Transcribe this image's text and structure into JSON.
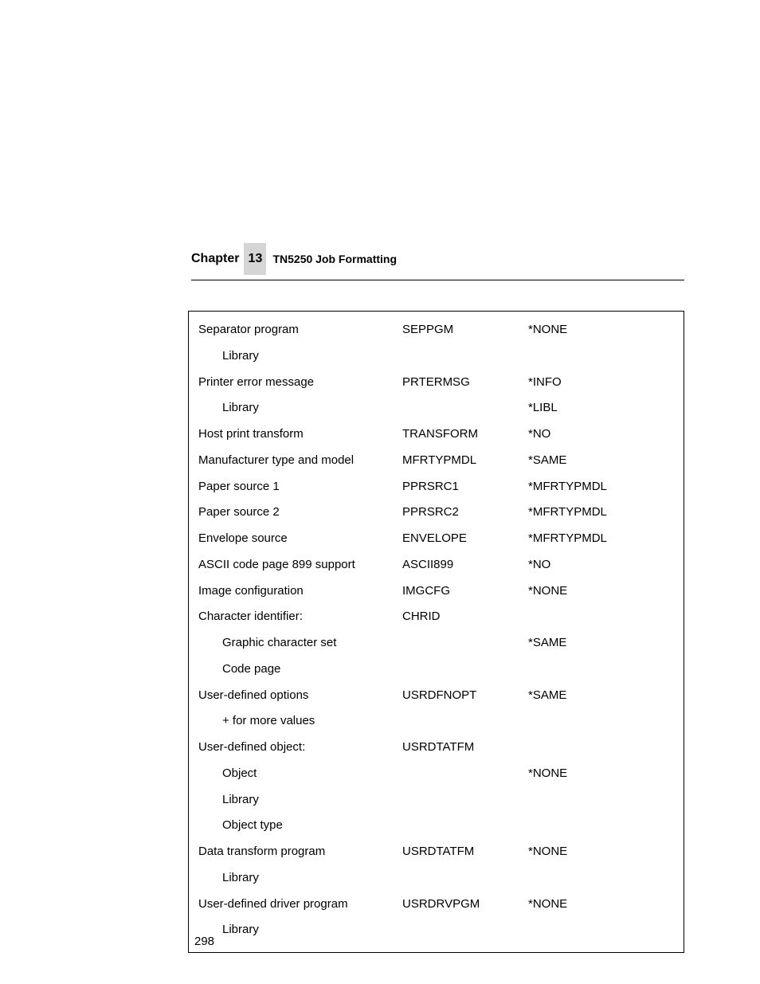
{
  "header": {
    "chapter_label": "Chapter",
    "chapter_number": "13",
    "section_title": "TN5250 Job Formatting"
  },
  "rows": [
    {
      "desc": "Separator program",
      "kw": "SEPPGM",
      "val": "*NONE",
      "indent": 0
    },
    {
      "desc": "Library",
      "kw": "",
      "val": "",
      "indent": 1
    },
    {
      "desc": "Printer error message",
      "kw": "PRTERMSG",
      "val": "*INFO",
      "indent": 0
    },
    {
      "desc": "Library",
      "kw": "",
      "val": "*LIBL",
      "indent": 1
    },
    {
      "desc": "Host print transform",
      "kw": "TRANSFORM",
      "val": "*NO",
      "indent": 0
    },
    {
      "desc": "Manufacturer type and model",
      "kw": "MFRTYPMDL",
      "val": "*SAME",
      "indent": 0
    },
    {
      "desc": "Paper source 1",
      "kw": "PPRSRC1",
      "val": "*MFRTYPMDL",
      "indent": 0
    },
    {
      "desc": "Paper source 2",
      "kw": "PPRSRC2",
      "val": "*MFRTYPMDL",
      "indent": 0
    },
    {
      "desc": "Envelope source",
      "kw": "ENVELOPE",
      "val": "*MFRTYPMDL",
      "indent": 0
    },
    {
      "desc": "ASCII code page 899 support",
      "kw": "ASCII899",
      "val": "*NO",
      "indent": 0
    },
    {
      "desc": "Image configuration",
      "kw": "IMGCFG",
      "val": "*NONE",
      "indent": 0
    },
    {
      "desc": "Character identifier:",
      "kw": "CHRID",
      "val": "",
      "indent": 0
    },
    {
      "desc": "Graphic character set",
      "kw": "",
      "val": "*SAME",
      "indent": 1
    },
    {
      "desc": "Code page",
      "kw": "",
      "val": "",
      "indent": 1
    },
    {
      "desc": "User-defined options",
      "kw": "USRDFNOPT",
      "val": "*SAME",
      "indent": 0
    },
    {
      "desc": "+ for more values",
      "kw": "",
      "val": "",
      "indent": 1
    },
    {
      "desc": "User-defined object:",
      "kw": "USRDTATFM",
      "val": "",
      "indent": 0
    },
    {
      "desc": "Object",
      "kw": "",
      "val": "*NONE",
      "indent": 1
    },
    {
      "desc": "Library",
      "kw": "",
      "val": "",
      "indent": 1
    },
    {
      "desc": "Object type",
      "kw": "",
      "val": "",
      "indent": 1
    },
    {
      "desc": "Data transform program",
      "kw": "USRDTATFM",
      "val": "*NONE",
      "indent": 0
    },
    {
      "desc": "Library",
      "kw": "",
      "val": "",
      "indent": 1
    },
    {
      "desc": "User-defined driver program",
      "kw": "USRDRVPGM",
      "val": "*NONE",
      "indent": 0
    },
    {
      "desc": "Library",
      "kw": "",
      "val": "",
      "indent": 1
    }
  ],
  "page_number": "298"
}
